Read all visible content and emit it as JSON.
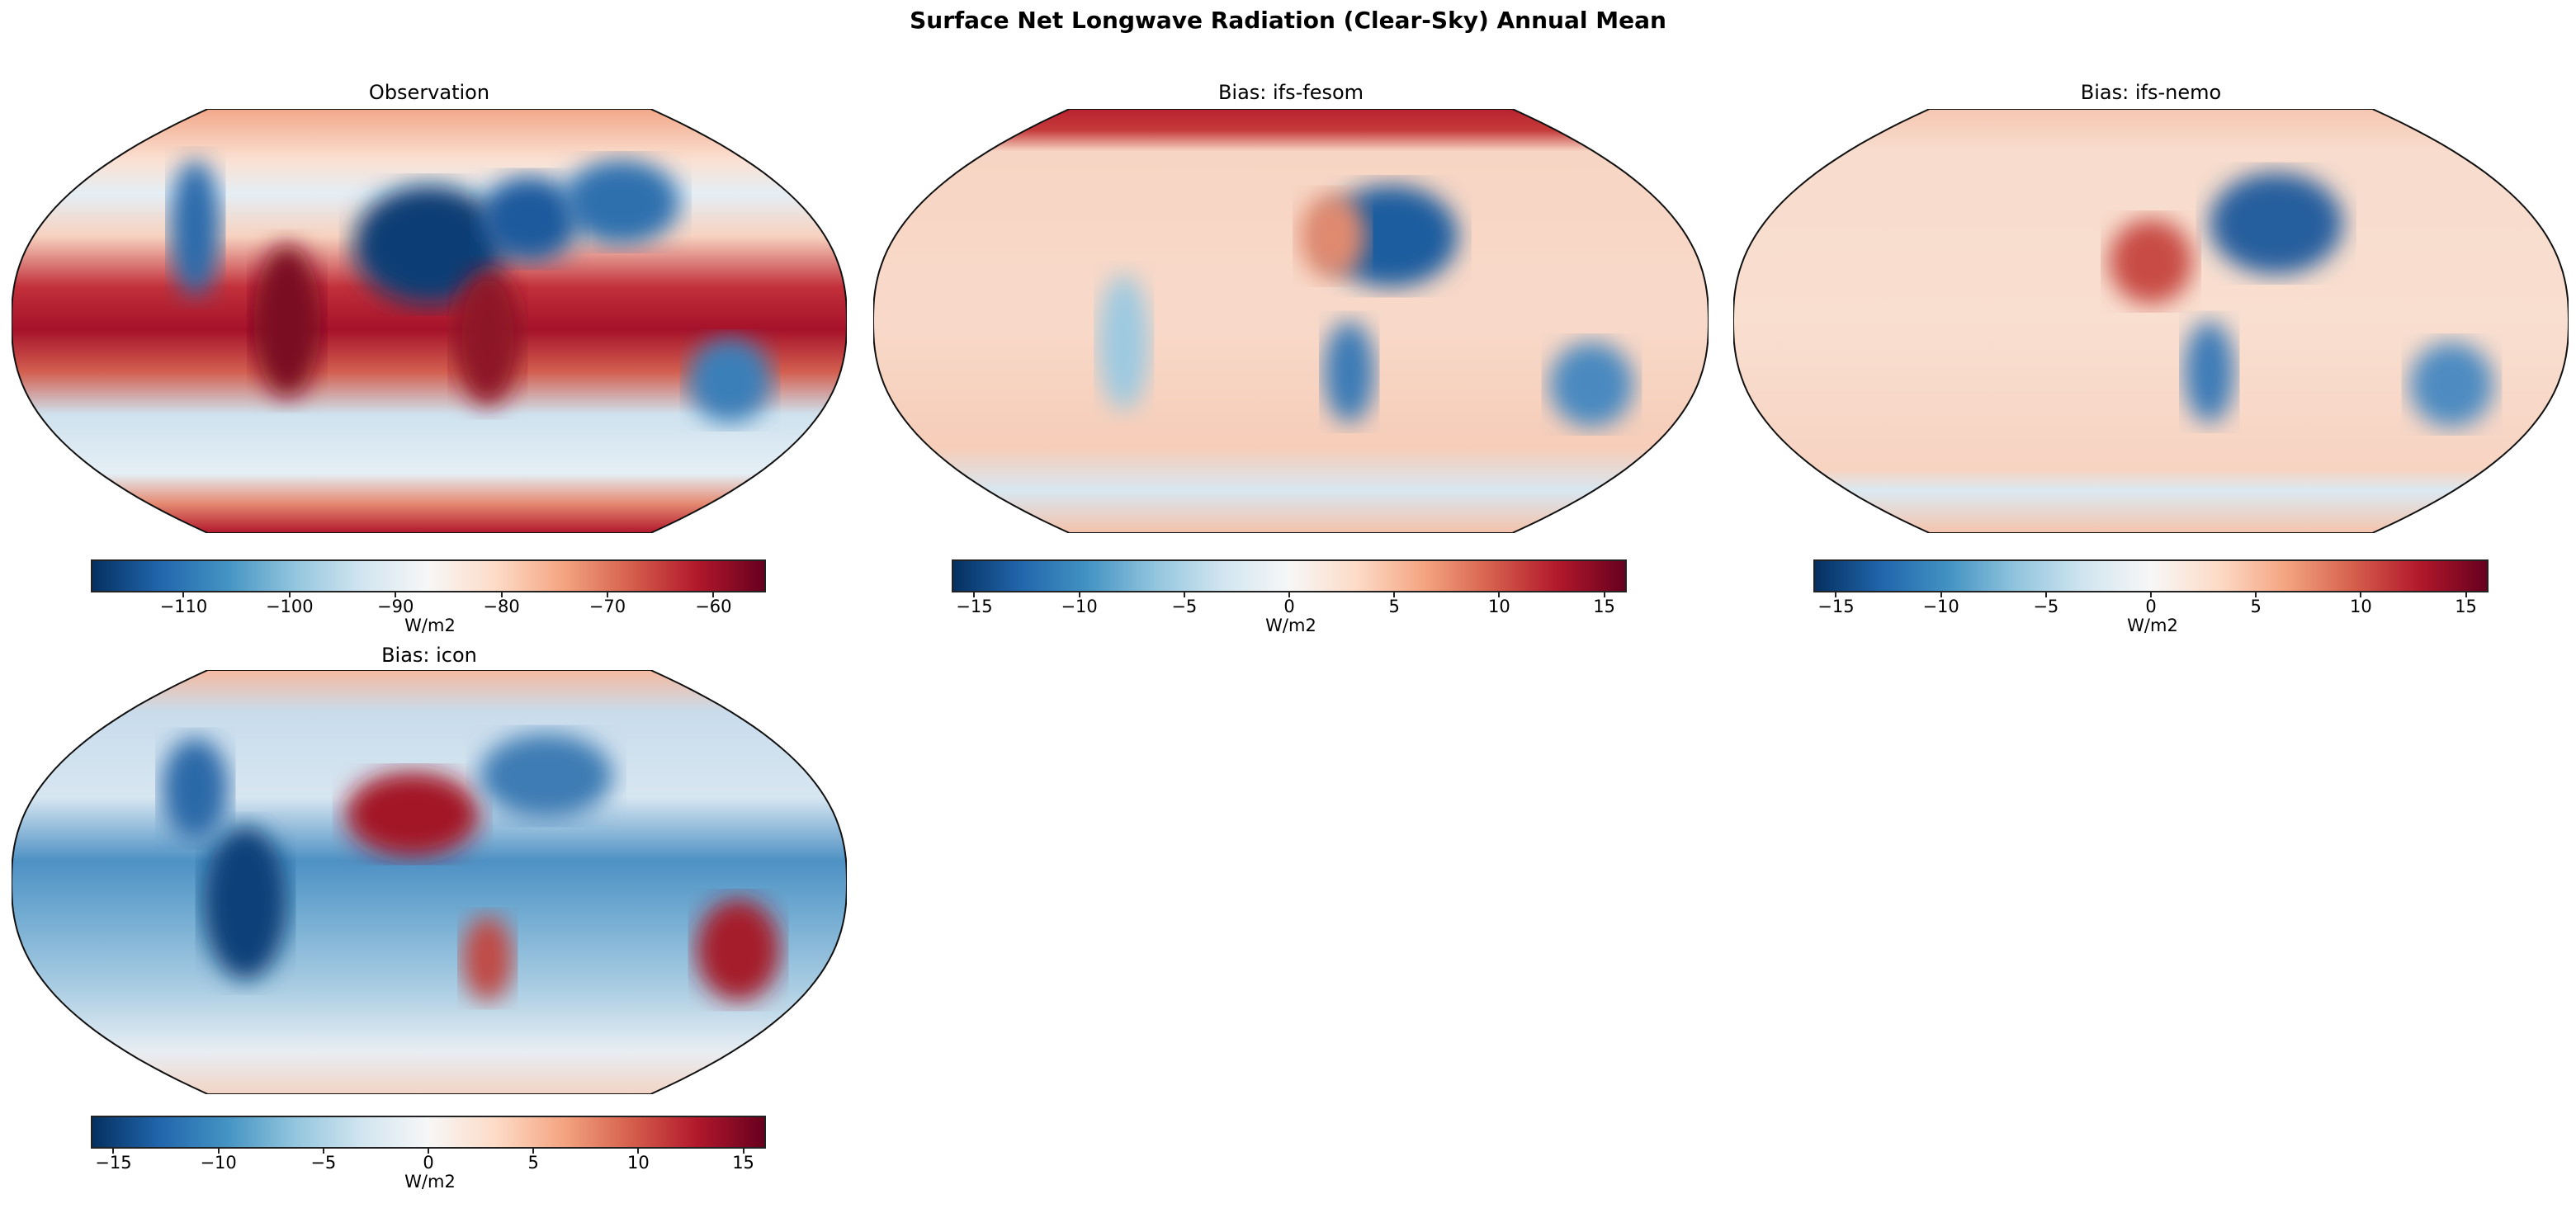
{
  "figure": {
    "title": "Surface Net Longwave Radiation (Clear-Sky) Annual Mean"
  },
  "colormap": [
    "#053061",
    "#2166ac",
    "#4393c3",
    "#92c5de",
    "#d1e5f0",
    "#f7f7f7",
    "#fddbc7",
    "#f4a582",
    "#d6604d",
    "#b2182b",
    "#67001f"
  ],
  "chart_data": [
    {
      "type": "heatmap",
      "projection": "Robinson",
      "title": "Observation",
      "colorbar": {
        "label": "W/m2",
        "range": [
          -118.6,
          -55.2
        ],
        "ticks": [
          -110,
          -100,
          -90,
          -80,
          -70,
          -60
        ],
        "tick_labels": [
          "−110",
          "−100",
          "−90",
          "−80",
          "−70",
          "−60"
        ]
      }
    },
    {
      "type": "heatmap",
      "projection": "Robinson",
      "title": "Bias: ifs-fesom",
      "colorbar": {
        "label": "W/m2",
        "range": [
          -16,
          16
        ],
        "ticks": [
          -15,
          -10,
          -5,
          0,
          5,
          10,
          15
        ],
        "tick_labels": [
          "−15",
          "−10",
          "−5",
          "0",
          "5",
          "10",
          "15"
        ]
      }
    },
    {
      "type": "heatmap",
      "projection": "Robinson",
      "title": "Bias: ifs-nemo",
      "colorbar": {
        "label": "W/m2",
        "range": [
          -16,
          16
        ],
        "ticks": [
          -15,
          -10,
          -5,
          0,
          5,
          10,
          15
        ],
        "tick_labels": [
          "−15",
          "−10",
          "−5",
          "0",
          "5",
          "10",
          "15"
        ]
      }
    },
    {
      "type": "heatmap",
      "projection": "Robinson",
      "title": "Bias: icon",
      "colorbar": {
        "label": "W/m2",
        "range": [
          -16,
          16
        ],
        "ticks": [
          -15,
          -10,
          -5,
          0,
          5,
          10,
          15
        ],
        "tick_labels": [
          "−15",
          "−10",
          "−5",
          "0",
          "5",
          "10",
          "15"
        ]
      }
    }
  ]
}
